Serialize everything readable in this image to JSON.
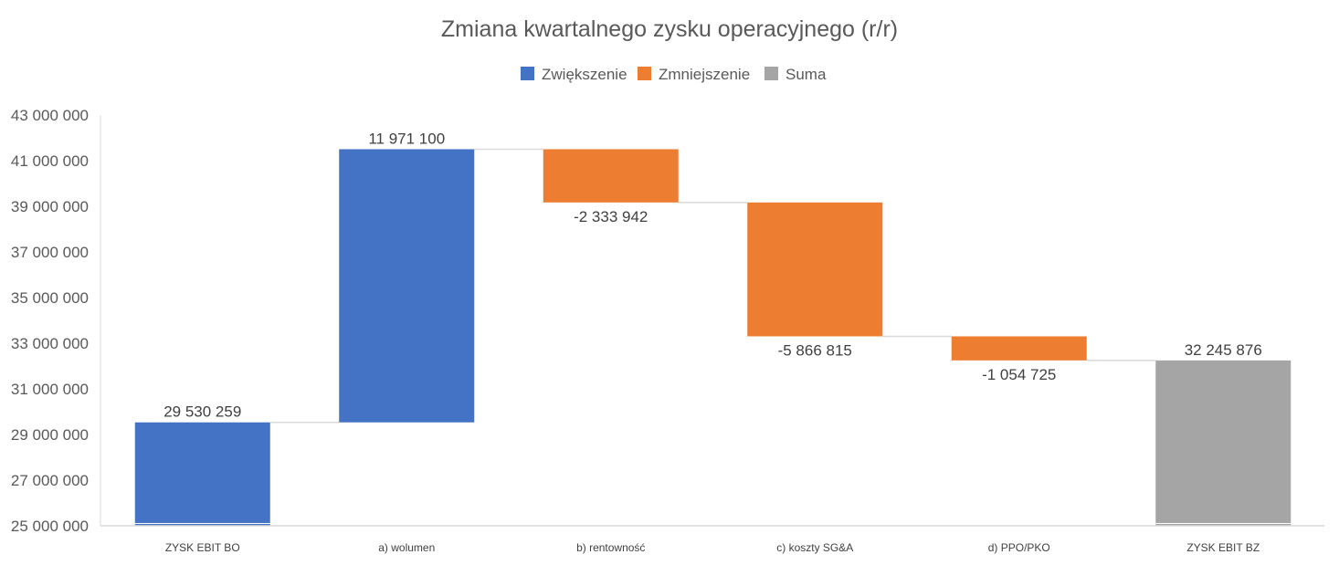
{
  "chart_data": {
    "type": "waterfall",
    "title": "Zmiana kwartalnego zysku operacyjnego (r/r)",
    "legend": {
      "placement": "top",
      "items": [
        {
          "label": "Zwiększenie",
          "color": "#4472C4"
        },
        {
          "label": "Zmniejszenie",
          "color": "#ED7D31"
        },
        {
          "label": "Suma",
          "color": "#A5A5A5"
        }
      ]
    },
    "ylim": [
      25000000,
      43000000
    ],
    "yticks": [
      25000000,
      27000000,
      29000000,
      31000000,
      33000000,
      35000000,
      37000000,
      39000000,
      41000000,
      43000000
    ],
    "ytick_labels": [
      "25 000 000",
      "27 000 000",
      "29 000 000",
      "31 000 000",
      "33 000 000",
      "35 000 000",
      "37 000 000",
      "39 000 000",
      "41 000 000",
      "43 000 000"
    ],
    "grid": false,
    "categories": [
      "ZYSK EBIT BO",
      "a) wolumen",
      "b) rentowność",
      "c) koszty SG&A",
      "d) PPO/PKO",
      "ZYSK EBIT BZ"
    ],
    "values": [
      29530259,
      11971100,
      -2333942,
      -5866815,
      -1054725,
      32245876
    ],
    "kinds": [
      "total",
      "increase",
      "decrease",
      "decrease",
      "decrease",
      "total"
    ],
    "data_labels": [
      "29 530 259",
      "11 971 100",
      "-2 333 942",
      "-5 866 815",
      "-1 054 725",
      "32 245 876"
    ],
    "colors": {
      "increase": "#4472C4",
      "decrease": "#ED7D31",
      "total": "#A5A5A5",
      "first_total": "#4472C4"
    }
  }
}
